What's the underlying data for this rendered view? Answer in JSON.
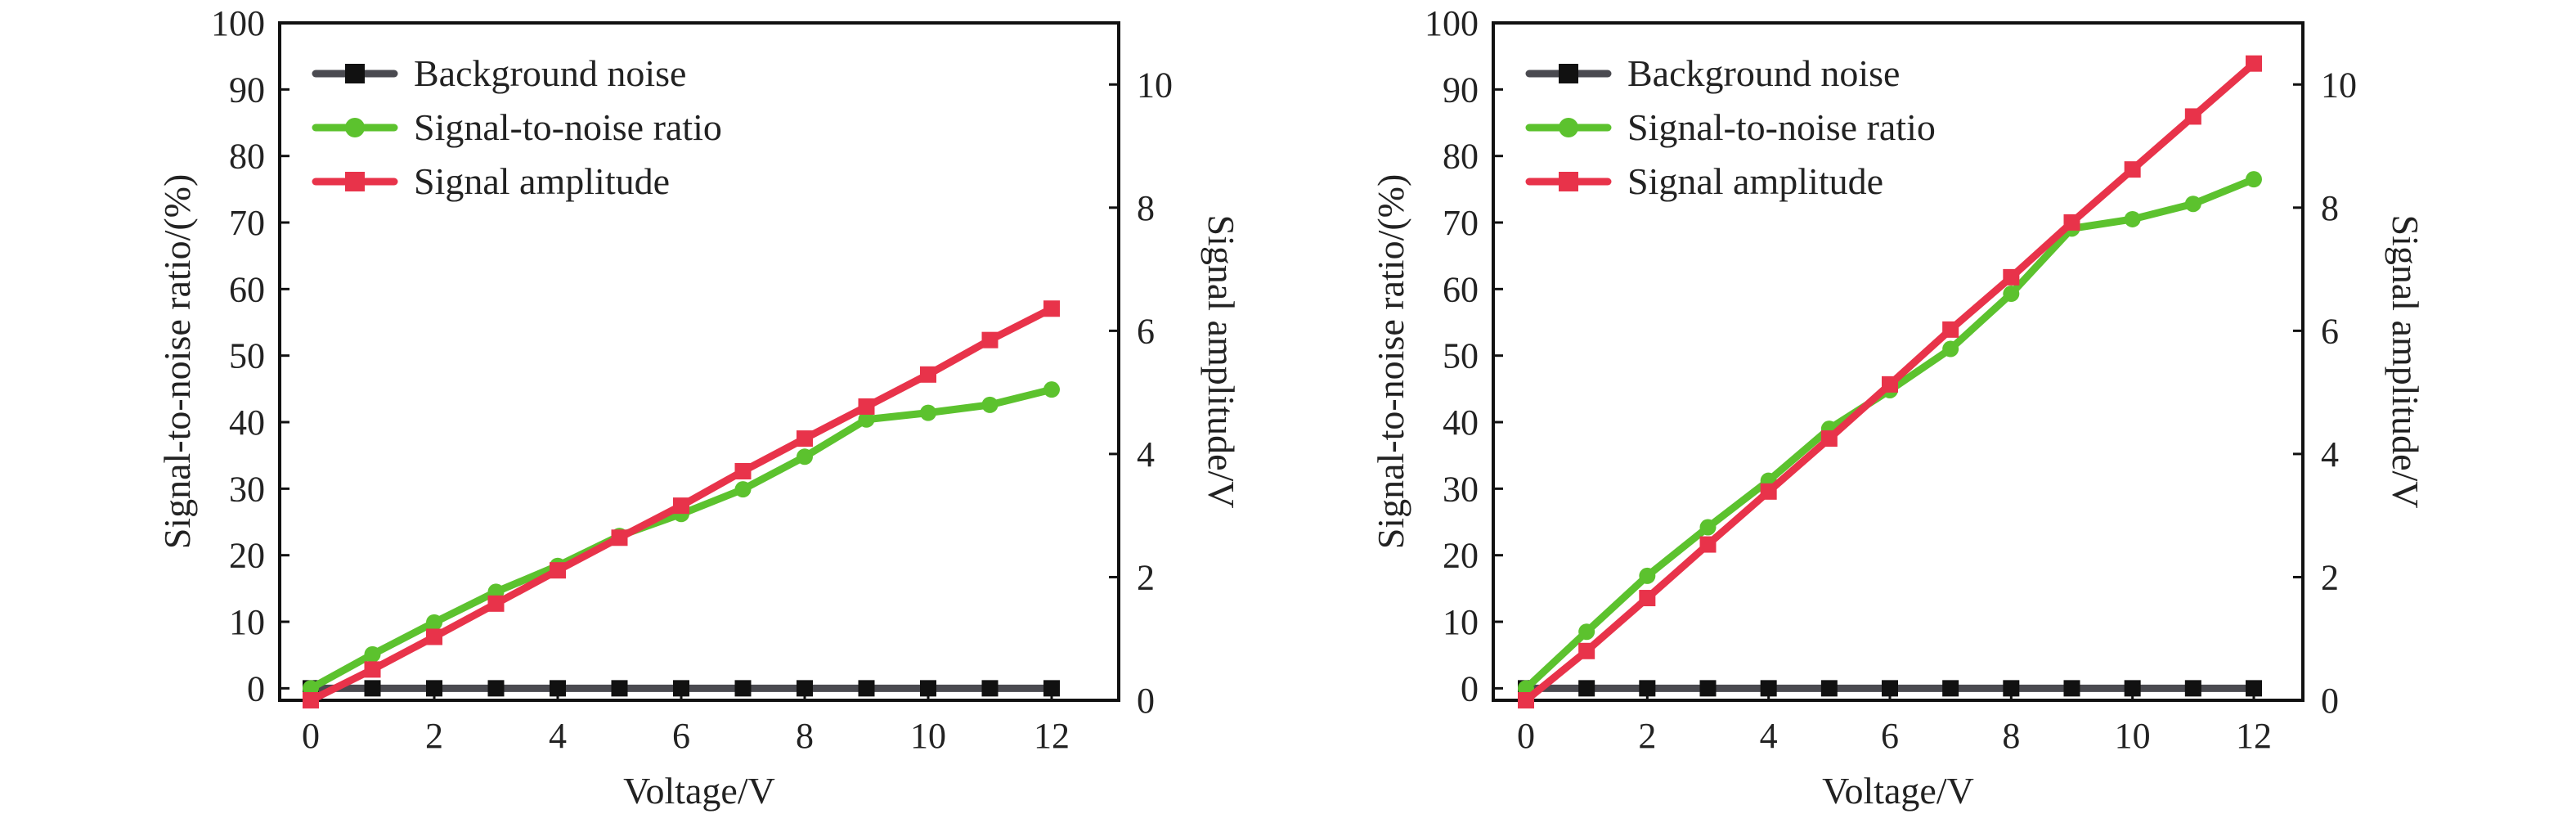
{
  "chart_data": [
    {
      "type": "line",
      "x": [
        0,
        1,
        2,
        3,
        4,
        5,
        6,
        7,
        8,
        9,
        10,
        11,
        12
      ],
      "xlabel": "Voltage/V",
      "ylabel": "Signal-to-noise ratio/(%)",
      "y2label": "Signal amplitude/V",
      "xlim": [
        0,
        12
      ],
      "ylim": [
        -1.8,
        100
      ],
      "y2lim": [
        0,
        11
      ],
      "xticks": [
        "0",
        "2",
        "4",
        "6",
        "8",
        "10",
        "12"
      ],
      "yticks": [
        "0",
        "10",
        "20",
        "30",
        "40",
        "50",
        "60",
        "70",
        "80",
        "90",
        "100"
      ],
      "y2ticks": [
        "0",
        "2",
        "4",
        "6",
        "8",
        "10"
      ],
      "grid": false,
      "legend_position": "top-left",
      "series": [
        {
          "name": "Background noise",
          "axis": "left",
          "color": "#4a4a50",
          "marker": "square",
          "marker_color": "#111111",
          "values": [
            0,
            0,
            0,
            0,
            0,
            0,
            0,
            0,
            0,
            0,
            0,
            0,
            0
          ]
        },
        {
          "name": "Signal-to-noise ratio",
          "axis": "left",
          "color": "#5cc22e",
          "marker": "circle",
          "marker_color": "#5cc22e",
          "values": [
            0,
            5.1,
            9.9,
            14.5,
            18.4,
            22.9,
            26.2,
            29.9,
            34.8,
            40.4,
            41.4,
            42.6,
            44.9
          ]
        },
        {
          "name": "Signal amplitude",
          "axis": "right",
          "color": "#e8334a",
          "marker": "square",
          "marker_color": "#e8334a",
          "values": [
            0,
            0.5,
            1.03,
            1.57,
            2.11,
            2.64,
            3.16,
            3.72,
            4.25,
            4.77,
            5.29,
            5.85,
            6.36
          ]
        }
      ]
    },
    {
      "type": "line",
      "x": [
        0,
        1,
        2,
        3,
        4,
        5,
        6,
        7,
        8,
        9,
        10,
        11,
        12
      ],
      "xlabel": "Voltage/V",
      "ylabel": "Signal-to-noise ratio/(%)",
      "y2label": "Signal amplitude/V",
      "xlim": [
        0,
        12
      ],
      "ylim": [
        -1.8,
        100
      ],
      "y2lim": [
        0,
        11
      ],
      "xticks": [
        "0",
        "2",
        "4",
        "6",
        "8",
        "10",
        "12"
      ],
      "yticks": [
        "0",
        "10",
        "20",
        "30",
        "40",
        "50",
        "60",
        "70",
        "80",
        "90",
        "100"
      ],
      "y2ticks": [
        "0",
        "2",
        "4",
        "6",
        "8",
        "10"
      ],
      "grid": false,
      "legend_position": "top-left",
      "series": [
        {
          "name": "Background noise",
          "axis": "left",
          "color": "#4a4a50",
          "marker": "square",
          "marker_color": "#111111",
          "values": [
            0,
            0,
            0,
            0,
            0,
            0,
            0,
            0,
            0,
            0,
            0,
            0,
            0
          ]
        },
        {
          "name": "Signal-to-noise ratio",
          "axis": "left",
          "color": "#5cc22e",
          "marker": "circle",
          "marker_color": "#5cc22e",
          "values": [
            0,
            8.5,
            16.9,
            24.2,
            31.2,
            39.0,
            44.8,
            51.0,
            59.3,
            69.1,
            70.5,
            72.8,
            76.5
          ]
        },
        {
          "name": "Signal amplitude",
          "axis": "right",
          "color": "#e8334a",
          "marker": "square",
          "marker_color": "#e8334a",
          "values": [
            0,
            0.8,
            1.66,
            2.53,
            3.39,
            4.25,
            5.13,
            6.02,
            6.87,
            7.76,
            8.62,
            9.48,
            10.34
          ]
        }
      ]
    }
  ]
}
